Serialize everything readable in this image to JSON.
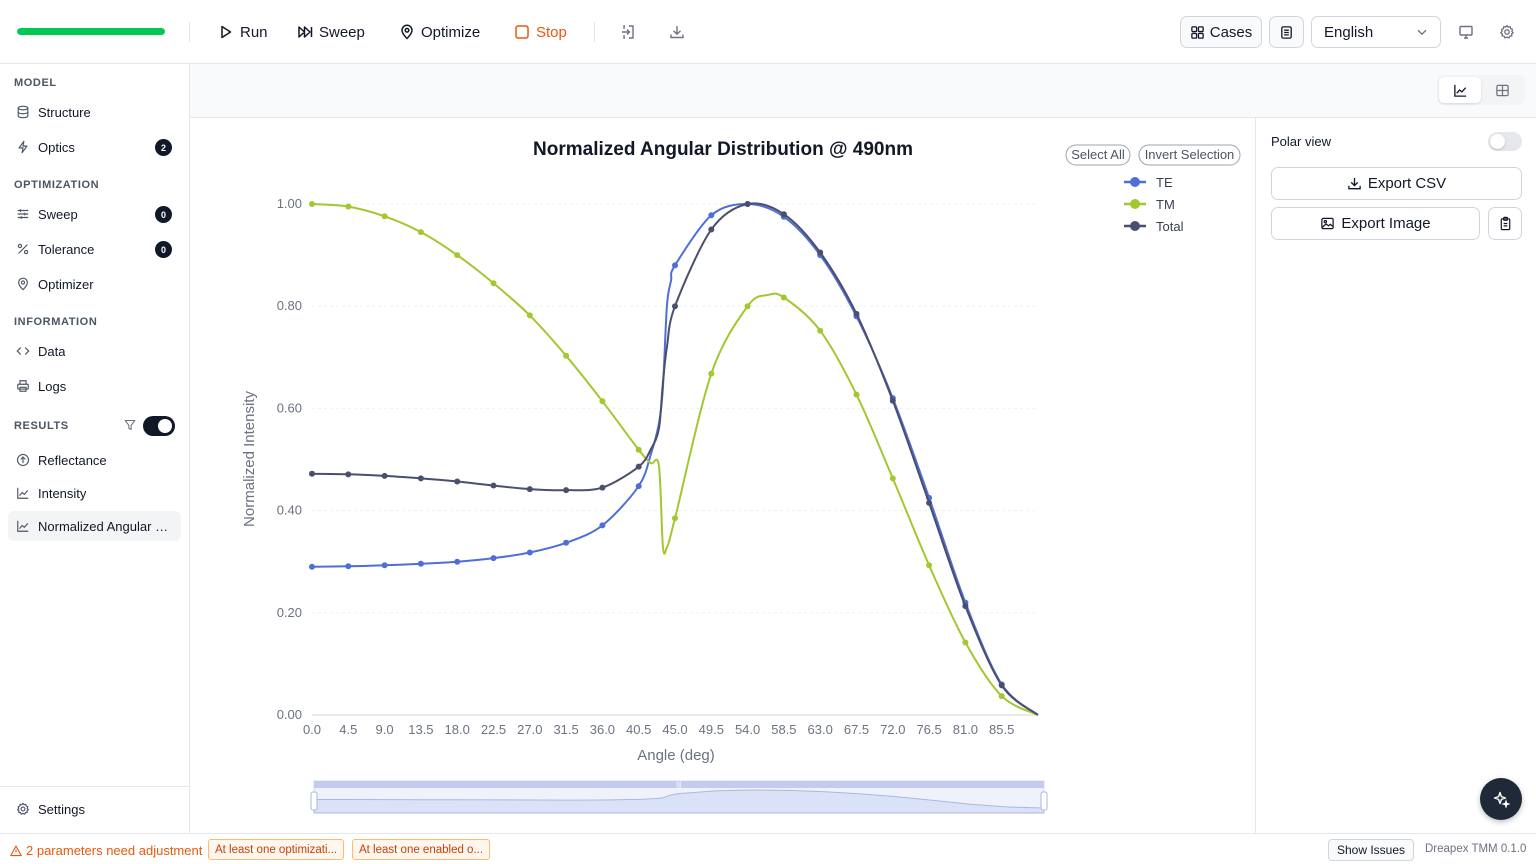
{
  "toolbar": {
    "progress": 1.0,
    "run_label": "Run",
    "sweep_label": "Sweep",
    "optimize_label": "Optimize",
    "stop_label": "Stop",
    "cases_label": "Cases",
    "language": "English"
  },
  "sidebar": {
    "sections": {
      "model": "MODEL",
      "optimization": "OPTIMIZATION",
      "information": "INFORMATION",
      "results": "RESULTS"
    },
    "items": {
      "structure": "Structure",
      "optics": "Optics",
      "optics_badge": "2",
      "sweep": "Sweep",
      "sweep_badge": "0",
      "tolerance": "Tolerance",
      "tolerance_badge": "0",
      "optimizer": "Optimizer",
      "data": "Data",
      "logs": "Logs",
      "reflectance": "Reflectance",
      "intensity": "Intensity",
      "normalized": "Normalized Angular Distribution"
    },
    "settings": "Settings"
  },
  "panel": {
    "polar_view": "Polar view",
    "export_csv": "Export CSV",
    "export_image": "Export Image"
  },
  "legend_controls": {
    "select_all": "Select All",
    "invert_selection": "Invert Selection"
  },
  "status": {
    "warning": "2 parameters need adjustment",
    "chip1": "At least one optimizati...",
    "chip2": "At least one enabled o...",
    "show_issues": "Show Issues",
    "version": "Dreapex TMM 0.1.0"
  },
  "chart_data": {
    "type": "line",
    "title": "Normalized Angular Distribution @ 490nm",
    "xlabel": "Angle (deg)",
    "ylabel": "Normalized Intensity",
    "xlim": [
      0,
      90
    ],
    "ylim": [
      0,
      1
    ],
    "x_ticks": [
      "0.0",
      "4.5",
      "9.0",
      "13.5",
      "18.0",
      "22.5",
      "27.0",
      "31.5",
      "36.0",
      "40.5",
      "45.0",
      "49.5",
      "54.0",
      "58.5",
      "63.0",
      "67.5",
      "72.0",
      "76.5",
      "81.0",
      "85.5"
    ],
    "y_ticks": [
      "0.00",
      "0.20",
      "0.40",
      "0.60",
      "0.80",
      "1.00"
    ],
    "legend_position": "top-right",
    "series": [
      {
        "name": "TE",
        "color": "#4f6ed6",
        "x": [
          0,
          4.5,
          9,
          13.5,
          18,
          22.5,
          27,
          31.5,
          36,
          40.5,
          42,
          43,
          43.5,
          44,
          44.5,
          45,
          49.5,
          54,
          58.5,
          63,
          67.5,
          72,
          76.5,
          81,
          85.5,
          90
        ],
        "values": [
          0.29,
          0.291,
          0.293,
          0.296,
          0.3,
          0.307,
          0.318,
          0.337,
          0.371,
          0.448,
          0.51,
          0.57,
          0.64,
          0.8,
          0.85,
          0.88,
          0.978,
          1.0,
          0.975,
          0.9,
          0.78,
          0.62,
          0.425,
          0.22,
          0.06,
          0.0
        ]
      },
      {
        "name": "TM",
        "color": "#a3c72e",
        "x": [
          0,
          4.5,
          9,
          13.5,
          18,
          22.5,
          27,
          31.5,
          36,
          40.5,
          42,
          43,
          43.5,
          44,
          45,
          49.5,
          54,
          56.5,
          58.5,
          63,
          67.5,
          72,
          76.5,
          81,
          85.5,
          90
        ],
        "values": [
          1.0,
          0.995,
          0.976,
          0.945,
          0.9,
          0.845,
          0.782,
          0.703,
          0.614,
          0.519,
          0.493,
          0.488,
          0.33,
          0.328,
          0.385,
          0.668,
          0.8,
          0.822,
          0.817,
          0.752,
          0.627,
          0.463,
          0.293,
          0.142,
          0.037,
          0.0
        ]
      },
      {
        "name": "Total",
        "color": "#4a4f6e",
        "x": [
          0,
          4.5,
          9,
          13.5,
          18,
          22.5,
          27,
          31.5,
          36,
          40.5,
          42,
          43,
          43.5,
          44,
          45,
          49.5,
          54,
          58.5,
          63,
          67.5,
          72,
          76.5,
          81,
          85.5,
          90
        ],
        "values": [
          0.472,
          0.471,
          0.468,
          0.463,
          0.457,
          0.449,
          0.442,
          0.44,
          0.445,
          0.486,
          0.52,
          0.56,
          0.65,
          0.72,
          0.8,
          0.95,
          1.0,
          0.98,
          0.905,
          0.785,
          0.615,
          0.415,
          0.213,
          0.058,
          0.0
        ]
      }
    ]
  }
}
